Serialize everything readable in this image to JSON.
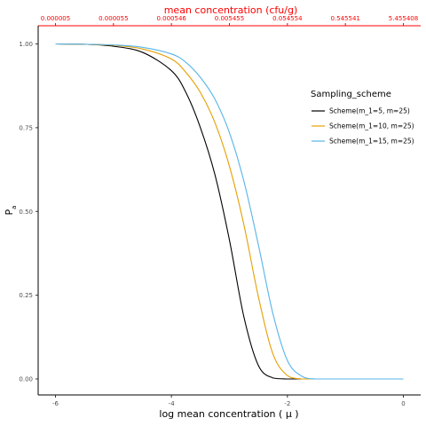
{
  "chart_data": {
    "type": "line",
    "xlabel": "log mean concentration  ( μ )",
    "ylabel": "P",
    "ylabel_subscript": "a",
    "x_top_label": "mean concentration (cfu/g)",
    "xlim": [
      -6,
      0
    ],
    "ylim": [
      0,
      1
    ],
    "x_ticks": [
      -6,
      -4,
      -2,
      0
    ],
    "x_tick_labels": [
      "-6",
      "-4",
      "-2",
      "0"
    ],
    "y_ticks": [
      0,
      0.25,
      0.5,
      0.75,
      1.0
    ],
    "y_tick_labels": [
      "0.00",
      "0.25",
      "0.50",
      "0.75",
      "1.00"
    ],
    "x_top_ticks": [
      -6,
      -5,
      -4,
      -3,
      -2,
      -1,
      0
    ],
    "x_top_tick_labels": [
      "0.000005",
      "0.000055",
      "0.000546",
      "0.005455",
      "0.054554",
      "0.545541",
      "5.455408"
    ],
    "grid": false,
    "legend": {
      "title": "Sampling_scheme",
      "placement": "right"
    },
    "series": [
      {
        "name": "Scheme(m_1=5, m=25)",
        "color": "#000000",
        "x": [
          -6,
          -5.5,
          -5.0,
          -4.5,
          -4.0,
          -3.75,
          -3.5,
          -3.25,
          -3.0,
          -2.75,
          -2.5,
          -2.25,
          -2.0,
          -1.75,
          -1.5,
          -1.0,
          0
        ],
        "y": [
          1.0,
          0.999,
          0.993,
          0.975,
          0.92,
          0.855,
          0.75,
          0.61,
          0.415,
          0.185,
          0.04,
          0.003,
          0.0,
          0.0,
          0.0,
          0.0,
          0.0
        ]
      },
      {
        "name": "Scheme(m_1=10, m=25)",
        "color": "#E69F00",
        "x": [
          -6,
          -5.5,
          -5.0,
          -4.5,
          -4.0,
          -3.75,
          -3.5,
          -3.25,
          -3.0,
          -2.75,
          -2.5,
          -2.25,
          -2.0,
          -1.75,
          -1.5,
          -1.0,
          0
        ],
        "y": [
          1.0,
          0.999,
          0.996,
          0.985,
          0.955,
          0.915,
          0.855,
          0.765,
          0.635,
          0.46,
          0.245,
          0.075,
          0.01,
          0.0,
          0.0,
          0.0,
          0.0
        ]
      },
      {
        "name": "Scheme(m_1=15, m=25)",
        "color": "#56B4E9",
        "x": [
          -6,
          -5.5,
          -5.0,
          -4.5,
          -4.0,
          -3.75,
          -3.5,
          -3.25,
          -3.0,
          -2.75,
          -2.5,
          -2.25,
          -2.0,
          -1.75,
          -1.5,
          -1.0,
          0
        ],
        "y": [
          1.0,
          0.999,
          0.997,
          0.99,
          0.97,
          0.945,
          0.9,
          0.835,
          0.735,
          0.59,
          0.4,
          0.195,
          0.055,
          0.008,
          0.0,
          0.0,
          0.0
        ]
      }
    ]
  }
}
